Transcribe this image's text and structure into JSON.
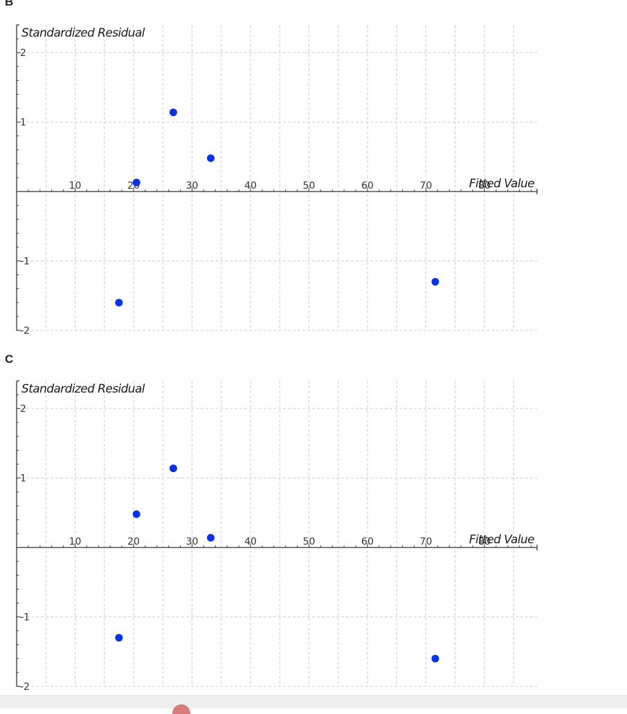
{
  "panels": [
    {
      "label": "B"
    },
    {
      "label": "C"
    }
  ],
  "chart_data": [
    {
      "type": "scatter",
      "title": "",
      "xlabel": "Fitted Value",
      "ylabel": "Standardized Residual",
      "xlim": [
        0,
        89
      ],
      "ylim": [
        -2,
        2.4
      ],
      "xticks": [
        10,
        20,
        30,
        40,
        50,
        60,
        70,
        80
      ],
      "yticks": [
        -2,
        -1,
        1,
        2
      ],
      "grid": true,
      "marker_color": "#0a32e6",
      "series": [
        {
          "x": [
            17.5,
            20.5,
            26.8,
            33.2,
            71.6
          ],
          "y": [
            -1.6,
            0.13,
            1.14,
            0.48,
            -1.3
          ]
        }
      ]
    },
    {
      "type": "scatter",
      "title": "",
      "xlabel": "Fitted Value",
      "ylabel": "Standardized Residual",
      "xlim": [
        0,
        89
      ],
      "ylim": [
        -2,
        2.4
      ],
      "xticks": [
        10,
        20,
        30,
        40,
        50,
        60,
        70,
        80
      ],
      "yticks": [
        -2,
        -1,
        1,
        2
      ],
      "grid": true,
      "marker_color": "#0a32e6",
      "series": [
        {
          "x": [
            17.5,
            20.5,
            26.8,
            33.2,
            71.6
          ],
          "y": [
            -1.3,
            0.48,
            1.14,
            0.14,
            -1.6
          ]
        }
      ]
    }
  ]
}
